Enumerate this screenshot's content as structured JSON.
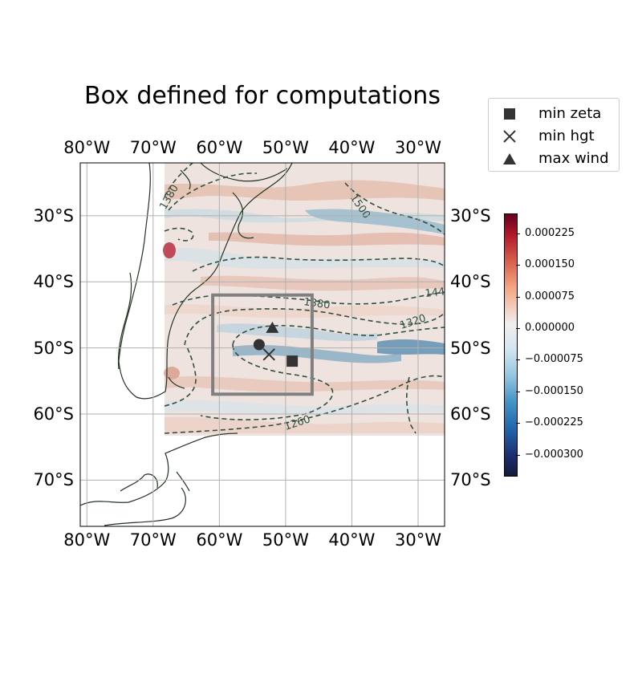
{
  "title": "Box defined for computations",
  "map": {
    "lon_range": [
      -81,
      -26
    ],
    "lat_range": [
      -77,
      -22
    ],
    "lon_ticks": [
      "80°W",
      "70°W",
      "60°W",
      "50°W",
      "40°W",
      "30°W"
    ],
    "lat_ticks": [
      "30°S",
      "40°S",
      "50°S",
      "60°S",
      "70°S"
    ],
    "gridlines": true,
    "computation_box": {
      "lon": [
        -61,
        -46
      ],
      "lat": [
        -57,
        -42
      ]
    },
    "contour_labels": [
      "1380",
      "1500",
      "1380",
      "1320",
      "1260",
      "144"
    ],
    "points": [
      {
        "name": "min zeta",
        "symbol": "square",
        "lon": -49,
        "lat": -52
      },
      {
        "name": "min hgt",
        "symbol": "x",
        "lon": -52.5,
        "lat": -51
      },
      {
        "name": "max wind",
        "symbol": "triangle",
        "lon": -52,
        "lat": -47
      },
      {
        "name": "",
        "symbol": "circle",
        "lon": -54,
        "lat": -49.5
      }
    ]
  },
  "legend": {
    "entries": [
      {
        "label": "min zeta",
        "symbol": "square-icon"
      },
      {
        "label": "min hgt",
        "symbol": "x-icon"
      },
      {
        "label": "max wind",
        "symbol": "triangle-icon"
      }
    ]
  },
  "colorbar": {
    "colormap": "diverging red-white-blue",
    "min": -0.00035,
    "max": 0.00027,
    "ticks": [
      "0.000225",
      "0.000150",
      "0.000075",
      "0.000000",
      "−0.000075",
      "−0.000150",
      "−0.000225",
      "−0.000300"
    ],
    "tick_values": [
      0.000225,
      0.00015,
      7.5e-05,
      0.0,
      -7.5e-05,
      -0.00015,
      -0.000225,
      -0.0003
    ]
  },
  "colors": {
    "positive": "#b2182b",
    "negative": "#2166ac",
    "neutral": "#f0eeee",
    "contour": "#2f4f3f",
    "box": "#808080",
    "marker": "#333333"
  }
}
